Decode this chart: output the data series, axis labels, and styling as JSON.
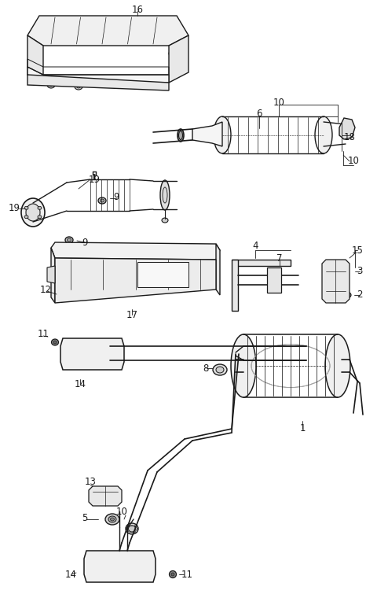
{
  "bg": "#ffffff",
  "lc": "#1a1a1a",
  "fig_w": 4.8,
  "fig_h": 7.55,
  "dpi": 100
}
